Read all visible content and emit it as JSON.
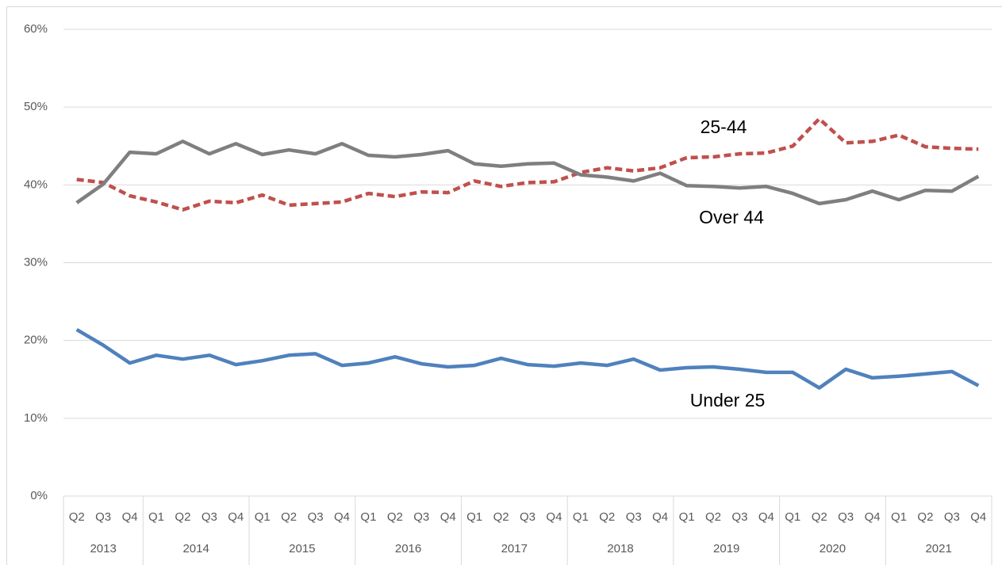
{
  "chart_data": {
    "type": "line",
    "categories": [
      "Q2",
      "Q3",
      "Q4",
      "Q1",
      "Q2",
      "Q3",
      "Q4",
      "Q1",
      "Q2",
      "Q3",
      "Q4",
      "Q1",
      "Q2",
      "Q3",
      "Q4",
      "Q1",
      "Q2",
      "Q3",
      "Q4",
      "Q1",
      "Q2",
      "Q3",
      "Q4",
      "Q1",
      "Q2",
      "Q3",
      "Q4",
      "Q1",
      "Q2",
      "Q3",
      "Q4",
      "Q1",
      "Q2",
      "Q3",
      "Q4"
    ],
    "groups": [
      {
        "label": "2013",
        "span": 3
      },
      {
        "label": "2014",
        "span": 4
      },
      {
        "label": "2015",
        "span": 4
      },
      {
        "label": "2016",
        "span": 4
      },
      {
        "label": "2017",
        "span": 4
      },
      {
        "label": "2018",
        "span": 4
      },
      {
        "label": "2019",
        "span": 4
      },
      {
        "label": "2020",
        "span": 4
      },
      {
        "label": "2021",
        "span": 4
      }
    ],
    "series": [
      {
        "name": "Under 25",
        "color": "#4f81bd",
        "dashed": false,
        "values": [
          21.4,
          19.4,
          17.1,
          18.1,
          17.6,
          18.1,
          16.9,
          17.4,
          18.1,
          18.3,
          16.8,
          17.1,
          17.9,
          17.0,
          16.6,
          16.8,
          17.7,
          16.9,
          16.7,
          17.1,
          16.8,
          17.6,
          16.2,
          16.5,
          16.6,
          16.3,
          15.9,
          15.9,
          13.9,
          16.3,
          15.2,
          15.4,
          15.7,
          16.0,
          14.2
        ]
      },
      {
        "name": "25-44",
        "color": "#c0504d",
        "dashed": true,
        "values": [
          40.7,
          40.3,
          38.6,
          37.8,
          36.8,
          37.9,
          37.7,
          38.7,
          37.4,
          37.6,
          37.8,
          38.9,
          38.5,
          39.1,
          39.0,
          40.5,
          39.8,
          40.3,
          40.4,
          41.6,
          42.2,
          41.8,
          42.2,
          43.5,
          43.6,
          44.0,
          44.1,
          45.0,
          48.5,
          45.4,
          45.6,
          46.4,
          44.9,
          44.7,
          44.6
        ]
      },
      {
        "name": "Over 44",
        "color": "#7f7f7f",
        "dashed": false,
        "values": [
          37.7,
          40.1,
          44.2,
          44.0,
          45.6,
          44.0,
          45.3,
          43.9,
          44.5,
          44.0,
          45.3,
          43.8,
          43.6,
          43.9,
          44.4,
          42.7,
          42.4,
          42.7,
          42.8,
          41.3,
          41.0,
          40.5,
          41.5,
          39.9,
          39.8,
          39.6,
          39.8,
          38.9,
          37.6,
          38.1,
          39.2,
          38.1,
          39.3,
          39.2,
          41.1
        ]
      }
    ],
    "ylim": [
      0,
      60
    ],
    "yticks": [
      {
        "value": 0,
        "label": "0%"
      },
      {
        "value": 10,
        "label": "10%"
      },
      {
        "value": 20,
        "label": "20%"
      },
      {
        "value": 30,
        "label": "30%"
      },
      {
        "value": 40,
        "label": "40%"
      },
      {
        "value": 50,
        "label": "50%"
      },
      {
        "value": 60,
        "label": "60%"
      }
    ],
    "grid": true
  }
}
